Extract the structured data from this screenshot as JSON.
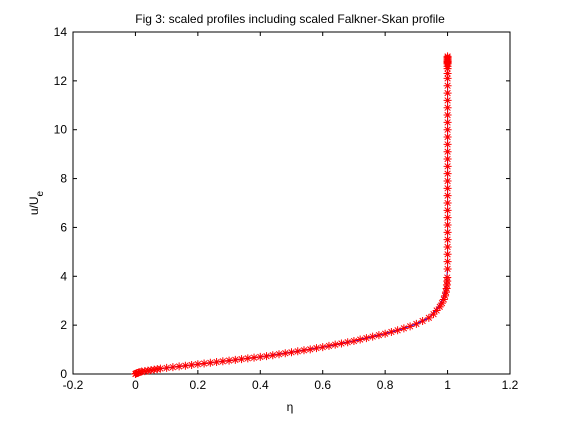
{
  "chart_data": {
    "type": "scatter",
    "title": "Fig 3: scaled profiles including scaled Falkner-Skan profile",
    "xlabel": "η",
    "ylabel_main": "u/U",
    "ylabel_sub": "e",
    "xlim": [
      -0.2,
      1.2
    ],
    "ylim": [
      0,
      14
    ],
    "xticks": [
      "-0.2",
      "0",
      "0.2",
      "0.4",
      "0.6",
      "0.8",
      "1",
      "1.2"
    ],
    "yticks": [
      "0",
      "2",
      "4",
      "6",
      "8",
      "10",
      "12",
      "14"
    ],
    "grid": false,
    "legend": "none",
    "colors": {
      "marker": "#ff0000",
      "line": "#0000ff",
      "axes": "#000000"
    },
    "series": [
      {
        "marker": "*",
        "x": [
          0.0,
          0.002,
          0.005,
          0.01,
          0.015,
          0.02,
          0.03,
          0.04,
          0.05,
          0.06,
          0.07,
          0.08,
          0.1,
          0.12,
          0.14,
          0.16,
          0.18,
          0.2,
          0.22,
          0.24,
          0.26,
          0.28,
          0.3,
          0.32,
          0.34,
          0.36,
          0.38,
          0.4,
          0.42,
          0.44,
          0.46,
          0.48,
          0.5,
          0.52,
          0.54,
          0.56,
          0.58,
          0.6,
          0.62,
          0.64,
          0.66,
          0.68,
          0.7,
          0.72,
          0.74,
          0.76,
          0.78,
          0.8,
          0.82,
          0.84,
          0.86,
          0.88,
          0.9,
          0.92,
          0.94,
          0.955,
          0.965,
          0.975,
          0.982,
          0.988,
          0.992,
          0.995,
          0.997,
          0.998,
          0.999,
          0.999,
          1.0,
          1.0,
          1.0,
          1.0,
          1.0,
          1.0,
          1.0,
          1.0,
          1.0,
          1.0,
          1.0,
          1.0,
          1.0,
          1.0,
          1.0,
          1.0,
          1.0,
          1.0,
          1.0,
          1.0,
          1.0,
          1.0,
          1.0,
          1.0,
          1.0,
          1.0,
          1.0,
          1.0,
          1.0,
          1.0,
          1.0,
          1.0,
          1.0,
          1.0,
          1.0,
          1.0,
          1.0,
          1.0,
          1.0
        ],
        "y": [
          0.0,
          0.02,
          0.04,
          0.06,
          0.08,
          0.1,
          0.12,
          0.14,
          0.16,
          0.18,
          0.2,
          0.22,
          0.25,
          0.28,
          0.31,
          0.34,
          0.37,
          0.4,
          0.43,
          0.46,
          0.49,
          0.52,
          0.55,
          0.58,
          0.61,
          0.64,
          0.67,
          0.7,
          0.73,
          0.77,
          0.81,
          0.85,
          0.89,
          0.93,
          0.97,
          1.01,
          1.06,
          1.1,
          1.15,
          1.2,
          1.25,
          1.3,
          1.35,
          1.41,
          1.47,
          1.53,
          1.59,
          1.65,
          1.72,
          1.79,
          1.87,
          1.95,
          2.05,
          2.17,
          2.3,
          2.45,
          2.6,
          2.75,
          2.9,
          3.05,
          3.2,
          3.35,
          3.5,
          3.65,
          3.8,
          3.95,
          4.3,
          4.6,
          4.9,
          5.2,
          5.5,
          5.8,
          6.1,
          6.4,
          6.7,
          7.0,
          7.3,
          7.6,
          7.9,
          8.2,
          8.5,
          8.8,
          9.1,
          9.4,
          9.7,
          10.0,
          10.3,
          10.6,
          10.9,
          11.2,
          11.5,
          11.8,
          12.1,
          12.3,
          12.5,
          12.6,
          12.7,
          12.75,
          12.8,
          12.85,
          12.9,
          12.95,
          13.0,
          12.7,
          12.8
        ]
      },
      {
        "marker": "line",
        "x": [
          0.0,
          0.05,
          0.1,
          0.2,
          0.3,
          0.4,
          0.5,
          0.6,
          0.7,
          0.8,
          0.85,
          0.9,
          0.94,
          0.97,
          0.985,
          0.995,
          1.0,
          1.0,
          1.0
        ],
        "y": [
          0.0,
          0.16,
          0.25,
          0.4,
          0.55,
          0.7,
          0.89,
          1.1,
          1.35,
          1.65,
          1.83,
          2.05,
          2.3,
          2.75,
          3.1,
          3.6,
          4.3,
          8.0,
          13.0
        ]
      }
    ]
  }
}
